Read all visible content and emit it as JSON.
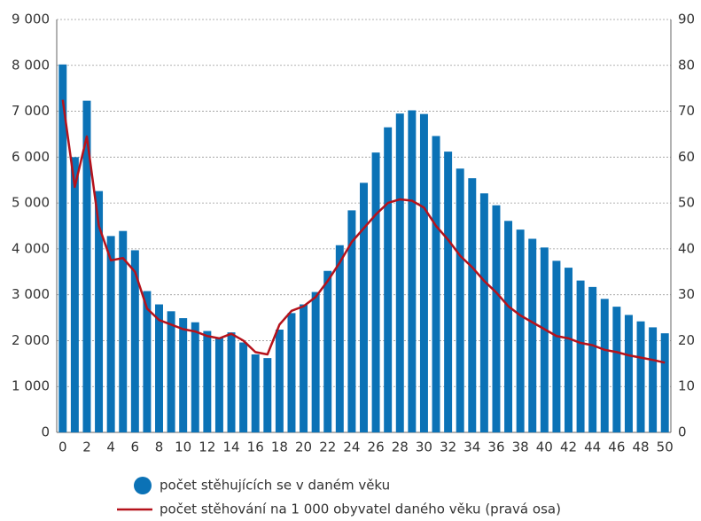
{
  "chart_data": {
    "type": "bar-line",
    "categories": [
      "0",
      null,
      "2",
      null,
      "4",
      null,
      "6",
      null,
      "8",
      null,
      "10",
      null,
      "12",
      null,
      "14",
      null,
      "16",
      null,
      "18",
      null,
      "20",
      null,
      "22",
      null,
      "24",
      null,
      "26",
      null,
      "28",
      null,
      "30",
      null,
      "32",
      null,
      "34",
      null,
      "36",
      null,
      "38",
      null,
      "40",
      null,
      "42",
      null,
      "44",
      null,
      "46",
      null,
      "48",
      null,
      "50"
    ],
    "series": [
      {
        "name": "počet stěhujících se v daném věku",
        "type": "bar",
        "color": "#0b72b6",
        "values": [
          8020,
          6000,
          7230,
          5260,
          4280,
          4390,
          3970,
          3080,
          2790,
          2640,
          2490,
          2400,
          2210,
          2060,
          2180,
          1960,
          1700,
          1620,
          2240,
          2600,
          2790,
          3060,
          3520,
          4080,
          4840,
          5440,
          6100,
          6650,
          6950,
          7020,
          6940,
          6460,
          6120,
          5750,
          5540,
          5210,
          4950,
          4610,
          4420,
          4220,
          4030,
          3740,
          3590,
          3310,
          3170,
          2910,
          2740,
          2560,
          2420,
          2290,
          2160
        ]
      },
      {
        "name": "počet stěhování na 1 000 obyvatel daného věku (pravá osa)",
        "type": "line",
        "color": "#b5121b",
        "axis": "y2",
        "values": [
          72.5,
          53.5,
          64.5,
          45,
          37.5,
          38,
          35,
          27,
          24.5,
          23.5,
          22.5,
          22,
          21,
          20.5,
          21.5,
          20,
          17.5,
          17,
          23.5,
          26.5,
          27.5,
          29.5,
          33,
          37,
          41.5,
          44.5,
          47.5,
          50,
          50.8,
          50.5,
          49,
          45,
          42,
          38.5,
          36,
          33,
          30.5,
          27.5,
          25.5,
          24,
          22.5,
          21,
          20.5,
          19.5,
          19,
          18,
          17.5,
          16.8,
          16.3,
          15.8,
          15.2
        ]
      }
    ],
    "ylim": [
      0,
      9000
    ],
    "yticks": [
      0,
      {
        "value": 1000,
        "label": "1 000"
      },
      {
        "value": 2000,
        "label": "2 000"
      },
      {
        "value": 3000,
        "label": "3 000"
      },
      {
        "value": 4000,
        "label": "4 000"
      },
      {
        "value": 5000,
        "label": "5 000"
      },
      {
        "value": 6000,
        "label": "6 000"
      },
      {
        "value": 7000,
        "label": "7 000"
      },
      {
        "value": 8000,
        "label": "8 000"
      },
      {
        "value": 9000,
        "label": "9 000"
      }
    ],
    "y2lim": [
      0,
      90
    ],
    "y2ticks": [
      0,
      10,
      20,
      30,
      40,
      50,
      60,
      70,
      80,
      90
    ],
    "grid": true,
    "legend": "bottom"
  }
}
